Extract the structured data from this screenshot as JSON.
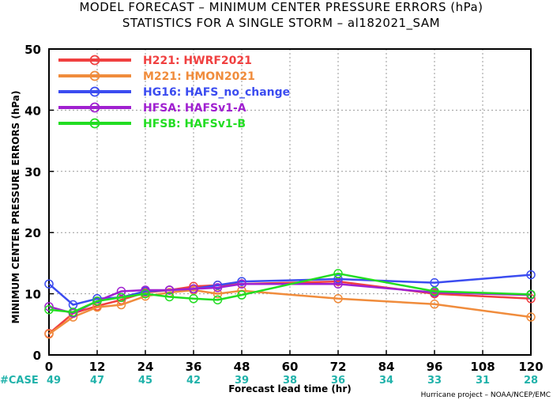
{
  "chart_data": {
    "type": "line",
    "title_line1": "MODEL FORECAST – MINIMUM CENTER PRESSURE ERRORS (hPa)",
    "title_line2": "STATISTICS FOR A SINGLE STORM – al182021_SAM",
    "xlabel": "Forecast lead time (hr)",
    "ylabel": "MINIMUM CENTER PRESSURE ERRORS (hPa)",
    "xlim": [
      0,
      120
    ],
    "ylim": [
      0,
      50
    ],
    "x_ticks": [
      0,
      12,
      24,
      36,
      48,
      60,
      72,
      84,
      96,
      108,
      120
    ],
    "y_ticks": [
      0,
      10,
      20,
      30,
      40,
      50
    ],
    "grid": true,
    "legend_position": "top-left",
    "case_label": "#CASE",
    "case_counts": [
      "49",
      "47",
      "45",
      "42",
      "39",
      "38",
      "36",
      "34",
      "33",
      "31",
      "28"
    ],
    "credit": "Hurricane project – NOAA/NCEP/EMC",
    "series": [
      {
        "name": "H221:  HWRF2021",
        "color": "#f04040",
        "x": [
          0,
          6,
          12,
          18,
          24,
          30,
          36,
          42,
          48,
          72,
          96,
          120
        ],
        "y": [
          3.5,
          6.8,
          8.0,
          9.0,
          10.2,
          10.6,
          11.2,
          11.4,
          11.6,
          12.0,
          10.0,
          9.2
        ]
      },
      {
        "name": "M221:  HMON2021",
        "color": "#f08c3c",
        "x": [
          0,
          6,
          12,
          18,
          24,
          30,
          36,
          42,
          48,
          72,
          96,
          120
        ],
        "y": [
          3.4,
          6.2,
          7.8,
          8.2,
          9.6,
          10.2,
          10.6,
          10.0,
          10.5,
          9.2,
          8.3,
          6.2
        ]
      },
      {
        "name": "HG16:  HAFS_no_change",
        "color": "#3b4cf0",
        "x": [
          0,
          6,
          12,
          18,
          24,
          30,
          36,
          42,
          48,
          72,
          96,
          120
        ],
        "y": [
          11.6,
          8.2,
          9.2,
          9.4,
          10.4,
          10.6,
          10.8,
          11.4,
          12.0,
          12.4,
          11.8,
          13.1
        ]
      },
      {
        "name": "HFSA:  HAFSv1-A",
        "color": "#a020d0",
        "x": [
          0,
          6,
          12,
          18,
          24,
          30,
          36,
          42,
          48,
          72,
          96,
          120
        ],
        "y": [
          7.9,
          6.8,
          8.8,
          10.4,
          10.6,
          10.6,
          10.8,
          11.0,
          11.6,
          11.6,
          10.2,
          9.8
        ]
      },
      {
        "name": "HFSB:  HAFSv1-B",
        "color": "#22dd22",
        "x": [
          0,
          6,
          12,
          18,
          24,
          30,
          36,
          42,
          48,
          72,
          96,
          120
        ],
        "y": [
          7.4,
          7.0,
          8.8,
          9.4,
          10.0,
          9.5,
          9.2,
          9.0,
          9.8,
          13.3,
          10.4,
          9.9
        ]
      }
    ]
  }
}
